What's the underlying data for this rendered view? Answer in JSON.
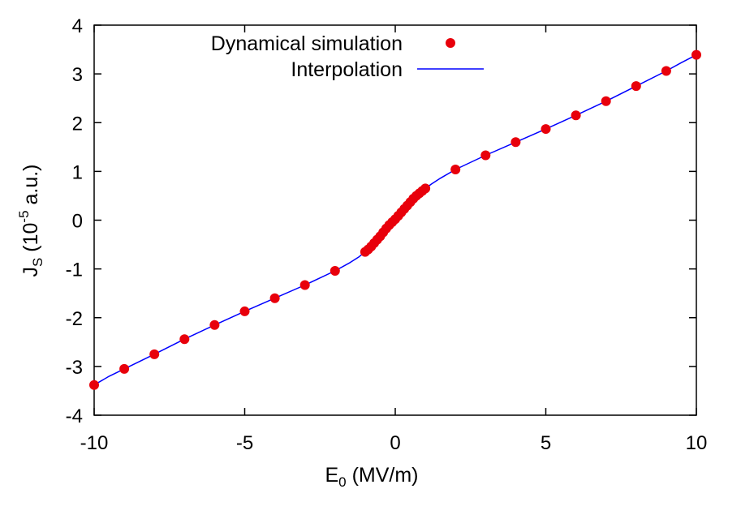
{
  "chart_data": {
    "type": "scatter",
    "xlabel": {
      "base": "E",
      "sub": "0",
      "rest": " (MV/m)"
    },
    "ylabel": {
      "base": "J",
      "sub": "S",
      "mid": " (10",
      "sup": "-5",
      "rest": " a.u.)"
    },
    "xlim": [
      -10,
      10
    ],
    "ylim": [
      -4,
      4
    ],
    "xticks": [
      "-10",
      "-5",
      "0",
      "5",
      "10"
    ],
    "yticks": [
      "-4",
      "-3",
      "-2",
      "-1",
      "0",
      "1",
      "2",
      "3",
      "4"
    ],
    "grid": false,
    "legend_position": "top-right",
    "series": [
      {
        "name": "Dynamical simulation",
        "kind": "points",
        "color": "#e8000b",
        "x": [
          -10,
          -9,
          -8,
          -7,
          -6,
          -5,
          -4,
          -3,
          -2,
          -1.0,
          -0.9,
          -0.8,
          -0.7,
          -0.6,
          -0.5,
          -0.4,
          -0.3,
          -0.2,
          -0.1,
          0,
          0.1,
          0.2,
          0.3,
          0.4,
          0.5,
          0.6,
          0.7,
          0.8,
          0.9,
          1.0,
          2,
          3,
          4,
          5,
          6,
          7,
          8,
          9,
          10
        ],
        "y": [
          -3.38,
          -3.05,
          -2.75,
          -2.44,
          -2.15,
          -1.87,
          -1.6,
          -1.33,
          -1.04,
          -0.65,
          -0.6,
          -0.54,
          -0.47,
          -0.4,
          -0.33,
          -0.25,
          -0.17,
          -0.1,
          -0.04,
          0.02,
          0.09,
          0.16,
          0.23,
          0.3,
          0.37,
          0.44,
          0.5,
          0.55,
          0.6,
          0.65,
          1.04,
          1.33,
          1.6,
          1.87,
          2.15,
          2.44,
          2.75,
          3.06,
          3.39
        ]
      },
      {
        "name": "Interpolation",
        "kind": "line",
        "color": "#0000ff",
        "x": [
          -10,
          -9.5,
          -9,
          -8,
          -7,
          -6,
          -5,
          -4,
          -3,
          -2,
          -1.5,
          -1.2,
          -1.0,
          -0.9,
          -0.8,
          -0.7,
          -0.6,
          -0.5,
          -0.4,
          -0.3,
          -0.2,
          -0.1,
          0,
          0.1,
          0.2,
          0.3,
          0.4,
          0.5,
          0.6,
          0.7,
          0.8,
          0.9,
          1.0,
          1.2,
          1.5,
          2,
          3,
          4,
          5,
          6,
          7,
          8,
          9,
          9.5,
          10
        ],
        "y": [
          -3.38,
          -3.2,
          -3.05,
          -2.75,
          -2.44,
          -2.15,
          -1.87,
          -1.6,
          -1.33,
          -1.04,
          -0.87,
          -0.75,
          -0.65,
          -0.6,
          -0.54,
          -0.47,
          -0.4,
          -0.33,
          -0.25,
          -0.17,
          -0.1,
          -0.04,
          0.02,
          0.09,
          0.16,
          0.23,
          0.3,
          0.37,
          0.44,
          0.5,
          0.55,
          0.6,
          0.65,
          0.74,
          0.86,
          1.04,
          1.33,
          1.6,
          1.87,
          2.15,
          2.44,
          2.75,
          3.06,
          3.23,
          3.39
        ]
      }
    ]
  }
}
